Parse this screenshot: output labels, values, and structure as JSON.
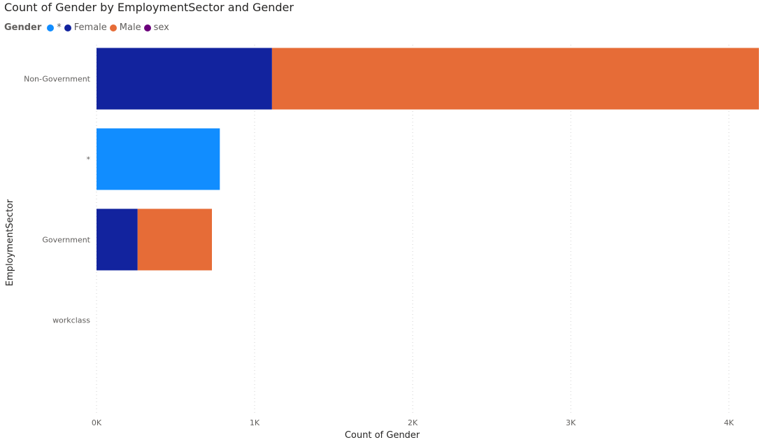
{
  "chart_data": {
    "type": "bar",
    "orientation": "horizontal",
    "stacked": true,
    "title": "Count of Gender by EmploymentSector and Gender",
    "xlabel": "Count of Gender",
    "ylabel": "EmploymentSector",
    "legend_title": "Gender",
    "legend_position": "top-left",
    "categories": [
      "Non-Government",
      "*",
      "Government",
      "workclass"
    ],
    "series": [
      {
        "name": "*",
        "color": "#118DFF",
        "values": [
          0,
          780,
          0,
          0
        ]
      },
      {
        "name": "Female",
        "color": "#12239E",
        "values": [
          1110,
          0,
          260,
          0
        ]
      },
      {
        "name": "Male",
        "color": "#E66C37",
        "values": [
          3080,
          0,
          470,
          0
        ]
      },
      {
        "name": "sex",
        "color": "#6B007B",
        "values": [
          0,
          0,
          0,
          1
        ]
      }
    ],
    "xlim": [
      0,
      4190
    ],
    "x_ticks": [
      {
        "value": 0,
        "label": "0K"
      },
      {
        "value": 1000,
        "label": "1K"
      },
      {
        "value": 2000,
        "label": "2K"
      },
      {
        "value": 3000,
        "label": "3K"
      },
      {
        "value": 4000,
        "label": "4K"
      }
    ],
    "grid": "vertical-dotted"
  }
}
